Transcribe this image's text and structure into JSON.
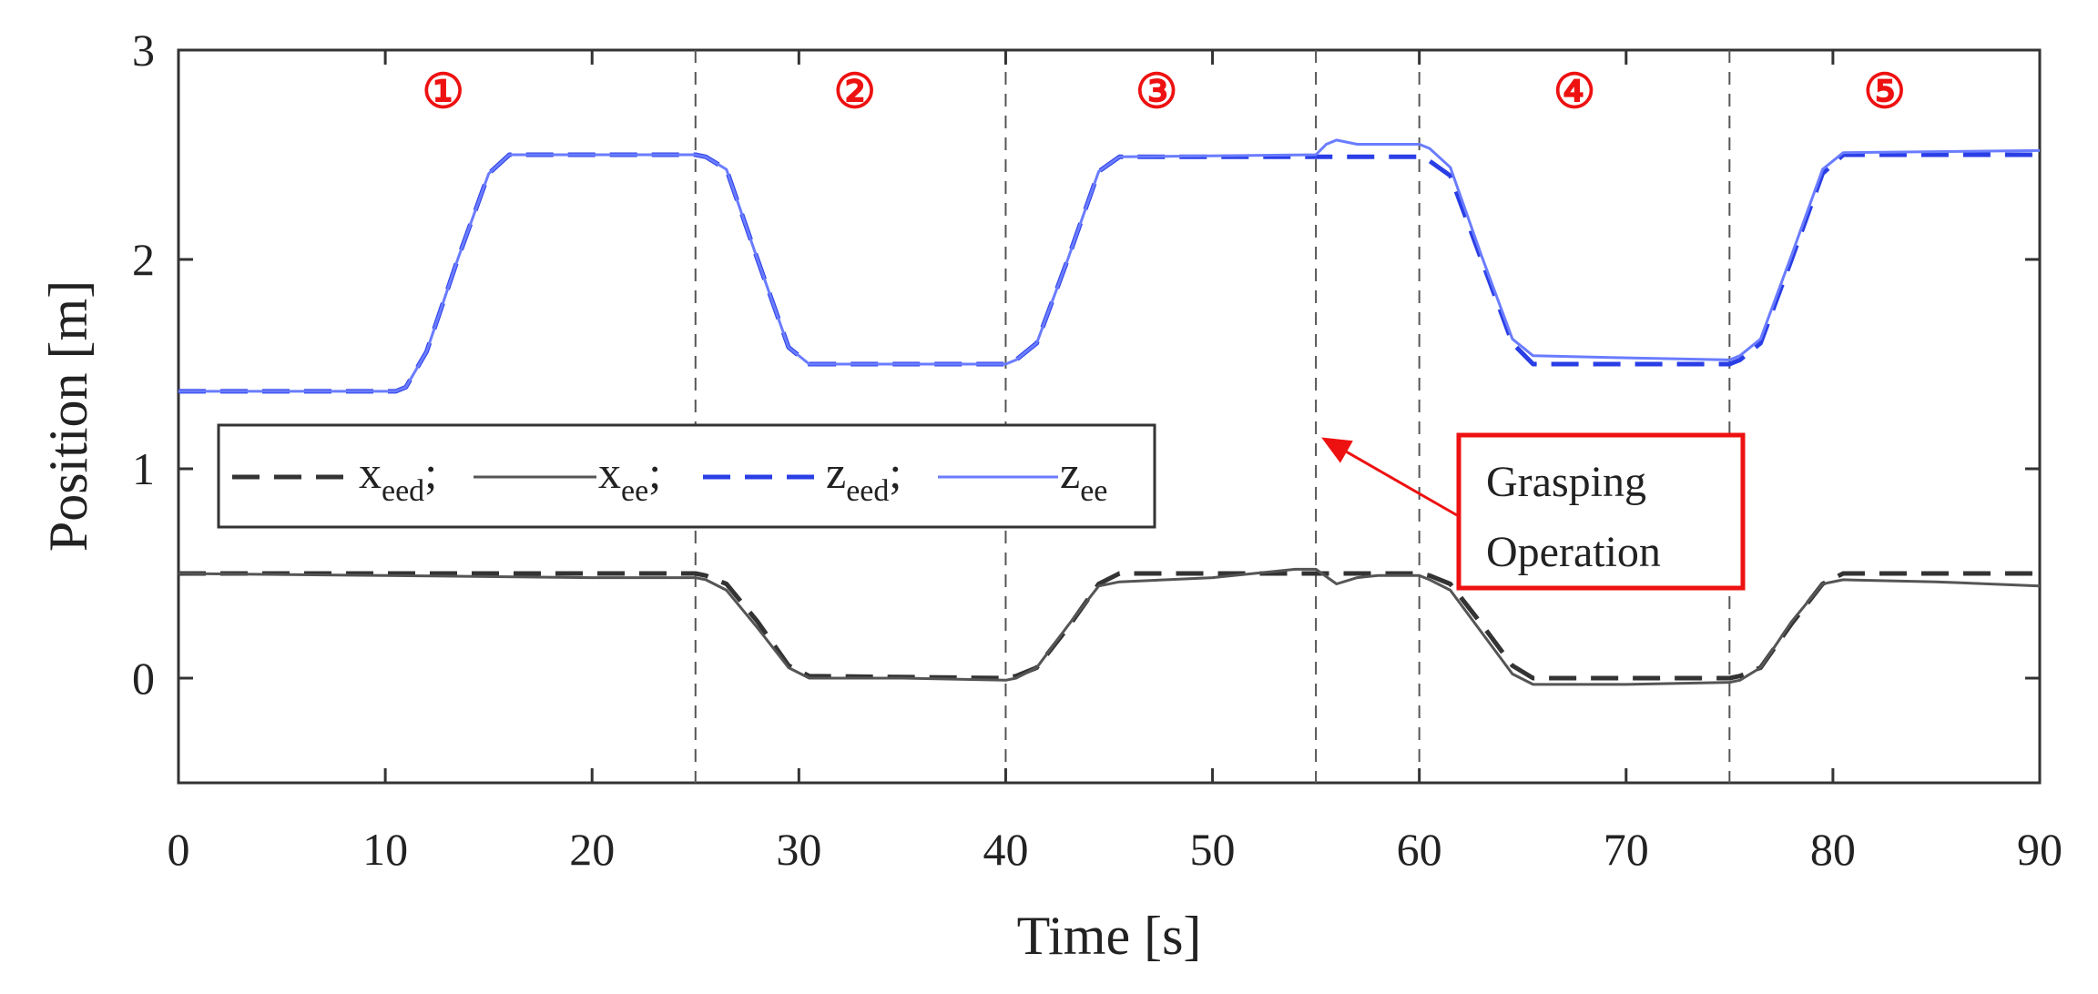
{
  "chart_data": {
    "type": "line",
    "xlabel": "Time [s]",
    "ylabel": "Position [m]",
    "xlim": [
      0,
      90
    ],
    "ylim": [
      -0.5,
      3
    ],
    "xticks": [
      0,
      10,
      20,
      30,
      40,
      50,
      60,
      70,
      80,
      90
    ],
    "yticks": [
      0,
      1,
      2,
      3
    ],
    "grid": false,
    "phase_boundaries": [
      25,
      40,
      55,
      60,
      75
    ],
    "phase_labels": [
      {
        "text": "①",
        "x": 12.8
      },
      {
        "text": "②",
        "x": 32.7
      },
      {
        "text": "③",
        "x": 47.3
      },
      {
        "text": "④",
        "x": 67.5
      },
      {
        "text": "⑤",
        "x": 82.5
      }
    ],
    "legend": {
      "placement": "middle-left",
      "entries": [
        {
          "series": "x_eed",
          "base": "x",
          "sub": "eed",
          "sep": ";"
        },
        {
          "series": "x_ee",
          "base": "x",
          "sub": "ee",
          "sep": ";"
        },
        {
          "series": "z_eed",
          "base": "z",
          "sub": "eed",
          "sep": ";"
        },
        {
          "series": "z_ee",
          "base": "z",
          "sub": "ee",
          "sep": ""
        }
      ]
    },
    "annotation": {
      "line1": "Grasping",
      "line2": "Operation",
      "points_to": [
        55,
        1.15
      ],
      "color": "#ee1111"
    },
    "series": [
      {
        "name": "x_eed",
        "color": "#333333",
        "dash": "dashed",
        "x": [
          0,
          25,
          25.5,
          26.5,
          28,
          29.5,
          30.5,
          40,
          40.5,
          41.5,
          43,
          44.5,
          45.5,
          55,
          55.5,
          58,
          60,
          60.5,
          61.5,
          63,
          64.5,
          65.5,
          75,
          75.5,
          76.5,
          78,
          79.5,
          80.5,
          90
        ],
        "y": [
          0.5,
          0.5,
          0.49,
          0.45,
          0.27,
          0.06,
          0.01,
          0.0,
          0.01,
          0.05,
          0.24,
          0.45,
          0.5,
          0.5,
          0.5,
          0.5,
          0.5,
          0.49,
          0.45,
          0.26,
          0.06,
          0.0,
          0.0,
          0.01,
          0.05,
          0.26,
          0.45,
          0.5,
          0.5
        ]
      },
      {
        "name": "x_ee",
        "color": "#555555",
        "dash": "solid",
        "x": [
          0,
          10,
          20,
          25,
          25.5,
          26.5,
          28,
          29.5,
          30.5,
          35,
          40,
          40.5,
          41.5,
          43,
          44.5,
          45.5,
          50,
          54,
          55,
          56,
          57,
          58,
          60,
          60.5,
          61.5,
          63,
          64.5,
          65.5,
          70,
          75,
          75.5,
          76.5,
          78,
          79.5,
          80.5,
          85,
          90
        ],
        "y": [
          0.5,
          0.49,
          0.48,
          0.48,
          0.47,
          0.42,
          0.24,
          0.05,
          0.0,
          0.0,
          -0.01,
          0.0,
          0.05,
          0.25,
          0.44,
          0.46,
          0.48,
          0.52,
          0.52,
          0.45,
          0.48,
          0.49,
          0.49,
          0.47,
          0.42,
          0.22,
          0.02,
          -0.03,
          -0.03,
          -0.02,
          -0.01,
          0.05,
          0.27,
          0.45,
          0.47,
          0.46,
          0.44
        ]
      },
      {
        "name": "z_eed",
        "color": "#2a3ee6",
        "dash": "dashed",
        "x": [
          0,
          10.5,
          11,
          12,
          13.5,
          15,
          16,
          25,
          25.5,
          26.5,
          28,
          29.5,
          30.5,
          40,
          40.5,
          41.5,
          43,
          44.5,
          45.5,
          55,
          60,
          60.5,
          61.5,
          63,
          64.5,
          65.5,
          75,
          75.5,
          76.5,
          78,
          79.5,
          80.5,
          90
        ],
        "y": [
          1.37,
          1.37,
          1.39,
          1.56,
          2.0,
          2.41,
          2.5,
          2.5,
          2.49,
          2.43,
          2.0,
          1.58,
          1.5,
          1.5,
          1.52,
          1.6,
          2.0,
          2.42,
          2.49,
          2.49,
          2.49,
          2.47,
          2.4,
          2.0,
          1.6,
          1.5,
          1.5,
          1.52,
          1.6,
          2.0,
          2.41,
          2.5,
          2.5
        ]
      },
      {
        "name": "z_ee",
        "color": "#6a7cff",
        "dash": "solid",
        "x": [
          0,
          10.5,
          11,
          12,
          13.5,
          15,
          16,
          25,
          25.5,
          26.5,
          28,
          29.5,
          30.5,
          40,
          40.5,
          41.5,
          43,
          44.5,
          45.5,
          55,
          55.5,
          56,
          57,
          60,
          60.5,
          61.5,
          63,
          64.5,
          65.5,
          70,
          75,
          75.5,
          76.5,
          78,
          79.5,
          80.5,
          90
        ],
        "y": [
          1.37,
          1.37,
          1.39,
          1.56,
          2.0,
          2.41,
          2.5,
          2.5,
          2.49,
          2.43,
          2.0,
          1.58,
          1.5,
          1.5,
          1.52,
          1.6,
          2.0,
          2.42,
          2.49,
          2.5,
          2.55,
          2.57,
          2.55,
          2.55,
          2.53,
          2.44,
          2.02,
          1.62,
          1.54,
          1.53,
          1.52,
          1.54,
          1.62,
          2.02,
          2.43,
          2.51,
          2.52
        ]
      }
    ]
  }
}
